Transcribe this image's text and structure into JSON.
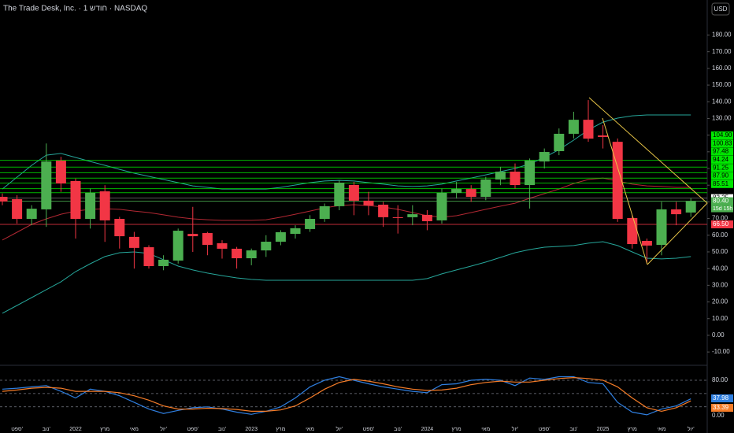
{
  "chart_data": {
    "type": "candlestick",
    "title": "The Trade Desk, Inc. · 1 חודש · NASDAQ",
    "currency": "USD",
    "categories": [
      null,
      "ספט'",
      null,
      "נוב'",
      null,
      "2022",
      null,
      "מרץ",
      null,
      "מאי",
      null,
      "יול'",
      null,
      "ספט'",
      null,
      "נוב'",
      null,
      "2023",
      null,
      "מרץ",
      null,
      "מאי",
      null,
      "יול'",
      null,
      "ספט'",
      null,
      "נוב'",
      null,
      "2024",
      null,
      "מרץ",
      null,
      "מאי",
      null,
      "יול'",
      null,
      "ספט'",
      null,
      "נוב'",
      null,
      "2025",
      null,
      "מרץ",
      null,
      "מאי",
      null,
      "יול'"
    ],
    "open": [
      83.0,
      81.6,
      69.8,
      75.5,
      104.7,
      92.5,
      69.8,
      86.3,
      69.8,
      59.0,
      52.8,
      41.5,
      44.8,
      60.8,
      61.3,
      55.2,
      51.9,
      46.2,
      50.9,
      56.1,
      60.8,
      63.7,
      69.8,
      77.4,
      90.1,
      80.7,
      78.3,
      70.8,
      70.8,
      72.2,
      68.9,
      85.4,
      87.7,
      83.0,
      93.4,
      98.1,
      90.1,
      104.2,
      110.4,
      120.8,
      129.2,
      119.8,
      116.0,
      70.3,
      56.6,
      54.2,
      75.5,
      73.6
    ],
    "high": [
      85,
      84,
      78,
      115,
      107,
      94,
      88,
      90,
      71,
      62,
      54,
      48,
      64,
      77,
      62,
      57,
      53,
      52,
      60,
      63,
      66,
      72,
      79,
      93,
      92,
      86,
      80,
      78,
      78,
      75,
      88,
      92,
      90,
      95,
      101,
      103,
      106,
      112,
      124,
      134,
      141,
      126,
      118,
      72,
      58,
      80,
      80,
      82.25
    ],
    "low": [
      78,
      67,
      66,
      65,
      86,
      58,
      64,
      56,
      52,
      40,
      40,
      39,
      43,
      50,
      48,
      46,
      40,
      42,
      47,
      54,
      58,
      62,
      68,
      75,
      72,
      72,
      65,
      61,
      66,
      63,
      67,
      82,
      80,
      81,
      90,
      88,
      76,
      100,
      108,
      118,
      116,
      112,
      68,
      52,
      43,
      48,
      66,
      71
    ],
    "close": [
      80.2,
      69.8,
      75.9,
      104.2,
      91.0,
      69.8,
      85.4,
      68.9,
      59.4,
      52.4,
      41.5,
      45.3,
      62.7,
      59.4,
      54.2,
      51.9,
      46.2,
      50.9,
      56.1,
      61.8,
      64.2,
      69.8,
      77.4,
      91.5,
      80.7,
      77.8,
      70.8,
      70.3,
      72.6,
      68.4,
      85.4,
      87.7,
      83.0,
      93.4,
      98.1,
      90.1,
      104.7,
      109.9,
      120.8,
      129.2,
      117.9,
      118.9,
      69.8,
      54.7,
      53.8,
      75.5,
      72.6,
      80.4
    ],
    "up_color": "#4caf50",
    "down_color": "#f23645",
    "ylim": [
      -17.5,
      201
    ],
    "yticks": [
      {
        "value": -10,
        "label": "-10.00"
      },
      {
        "value": 0,
        "label": "0.00"
      },
      {
        "value": 10,
        "label": "10.00"
      },
      {
        "value": 20,
        "label": "20.00"
      },
      {
        "value": 30,
        "label": "30.00"
      },
      {
        "value": 40,
        "label": "40.00"
      },
      {
        "value": 50,
        "label": "50.00"
      },
      {
        "value": 60,
        "label": "60.00"
      },
      {
        "value": 70,
        "label": "70.00"
      },
      {
        "value": 80,
        "label": "80.00"
      },
      {
        "value": 90,
        "label": "90.00"
      },
      {
        "value": 100,
        "label": "100.00"
      },
      {
        "value": 110,
        "label": "110.00"
      },
      {
        "value": 120,
        "label": "120.00"
      },
      {
        "value": 130,
        "label": "130.00"
      },
      {
        "value": 140,
        "label": "140.00"
      },
      {
        "value": 150,
        "label": "150.00"
      },
      {
        "value": 160,
        "label": "160.00"
      },
      {
        "value": 170,
        "label": "170.00"
      },
      {
        "value": 180,
        "label": "180.00"
      }
    ],
    "bands": {
      "band_color": "#26a69a",
      "basis_color": "#b22833",
      "upper": [
        87.7,
        94.8,
        101.9,
        108.0,
        109.0,
        106.6,
        104.2,
        101.9,
        99.5,
        97.2,
        95.3,
        93.4,
        91.5,
        89.6,
        88.7,
        87.7,
        87.7,
        87.7,
        87.7,
        88.7,
        90.1,
        91.5,
        92.5,
        92.9,
        92.5,
        91.5,
        90.6,
        89.6,
        89.2,
        89.6,
        90.6,
        92.5,
        94.3,
        96.2,
        98.1,
        100.0,
        102.8,
        106.6,
        111.3,
        117.0,
        123.1,
        127.8,
        130.2,
        131.6,
        132.1,
        132.1,
        132.1,
        132.1
      ],
      "basis": [
        57.1,
        61.8,
        66.5,
        69.8,
        72.6,
        74.5,
        75.5,
        75.9,
        75.5,
        74.5,
        73.6,
        72.2,
        70.8,
        69.8,
        69.3,
        68.9,
        68.9,
        68.9,
        69.3,
        70.8,
        72.6,
        74.5,
        76.4,
        77.8,
        78.3,
        77.8,
        76.9,
        75.5,
        73.6,
        71.7,
        70.8,
        71.7,
        73.6,
        75.5,
        77.4,
        79.2,
        82.1,
        84.9,
        87.7,
        91.0,
        93.4,
        94.3,
        92.5,
        90.6,
        89.6,
        89.2,
        88.7,
        88.7
      ],
      "lower": [
        13.2,
        17.9,
        22.6,
        27.4,
        32.1,
        38.2,
        42.9,
        47.2,
        49.5,
        50.0,
        49.1,
        45.3,
        41.5,
        39.2,
        37.3,
        35.8,
        34.4,
        33.5,
        33.0,
        33.0,
        33.0,
        33.0,
        33.0,
        33.0,
        33.0,
        33.0,
        33.0,
        33.0,
        33.0,
        34.0,
        36.8,
        39.2,
        41.5,
        43.9,
        46.7,
        49.5,
        51.4,
        52.8,
        53.3,
        53.8,
        55.2,
        56.1,
        53.8,
        50.0,
        46.2,
        45.8,
        46.2,
        47.2
      ]
    },
    "levels": [
      {
        "value": 104.9,
        "label": "104.90",
        "color": "#00e600"
      },
      {
        "value": 100.83,
        "color": "#00e600"
      },
      {
        "value": 97.48,
        "color": "#00e600"
      },
      {
        "value": 94.24,
        "color": "#00e600"
      },
      {
        "value": 91.25,
        "color": "#00e600"
      },
      {
        "value": 87.9,
        "label": "87.90",
        "color": "#00e600"
      },
      {
        "value": 85.51,
        "color": "#00e600"
      },
      {
        "value": 82.25,
        "color": "#ffffff"
      },
      {
        "value": 80.4,
        "label": "80.40",
        "color": "#4caf50"
      },
      {
        "value": 66.5,
        "label": "66.50",
        "color": "#f23645"
      }
    ],
    "countdown": "15d 15h",
    "oscillator": {
      "type": "line",
      "ylim": [
        -21.3,
        112
      ],
      "yticks": [
        {
          "value": 0,
          "label": "0.00"
        },
        {
          "value": 80,
          "label": "80.00"
        }
      ],
      "guides": [
        80,
        50,
        20
      ],
      "series": [
        {
          "color": "#2f7fe0",
          "values": [
            60,
            62,
            65,
            68,
            55,
            40,
            60,
            55,
            45,
            30,
            15,
            5,
            12,
            18,
            20,
            15,
            8,
            3,
            10,
            20,
            40,
            65,
            80,
            88,
            80,
            72,
            65,
            60,
            55,
            52,
            70,
            72,
            80,
            82,
            80,
            68,
            85,
            82,
            88,
            88,
            75,
            72,
            30,
            8,
            2,
            15,
            22,
            37.98
          ]
        },
        {
          "color": "#f57c28",
          "values": [
            55,
            58,
            62,
            64,
            62,
            55,
            55,
            55,
            52,
            45,
            35,
            22,
            15,
            15,
            17,
            16,
            14,
            10,
            10,
            13,
            22,
            40,
            60,
            75,
            82,
            78,
            72,
            65,
            60,
            57,
            58,
            62,
            70,
            75,
            78,
            76,
            76,
            80,
            84,
            86,
            84,
            80,
            65,
            40,
            18,
            10,
            18,
            33.39
          ]
        }
      ]
    }
  }
}
